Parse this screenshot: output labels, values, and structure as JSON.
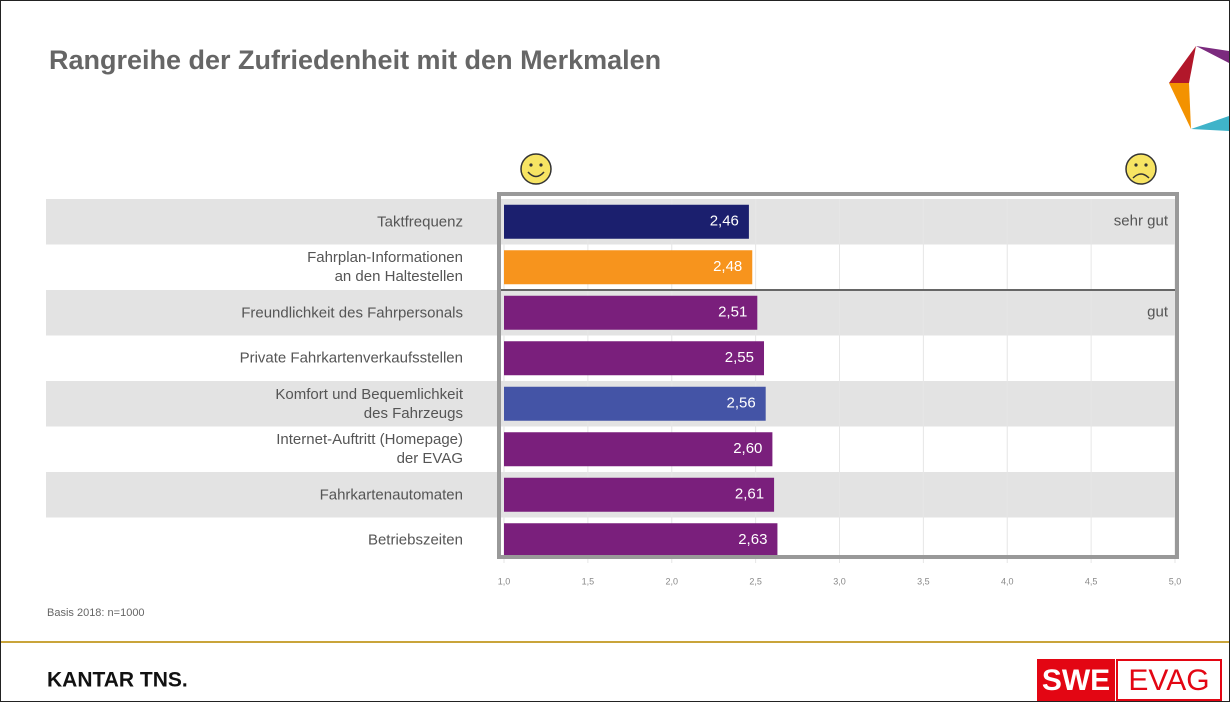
{
  "chart_data": {
    "type": "bar",
    "orientation": "horizontal",
    "title": "Rangreihe der Zufriedenheit mit den Merkmalen",
    "categories": [
      "Taktfrequenz",
      "Fahrplan-Informationen\nan den Haltestellen",
      "Freundlichkeit des Fahrpersonals",
      "Private Fahrkartenverkaufsstellen",
      "Komfort und Bequemlichkeit\ndes Fahrzeugs",
      "Internet-Auftritt (Homepage)\nder EVAG",
      "Fahrkartenautomaten",
      "Betriebszeiten"
    ],
    "values": [
      2.46,
      2.48,
      2.51,
      2.55,
      2.56,
      2.6,
      2.61,
      2.63
    ],
    "value_labels": [
      "2,46",
      "2,48",
      "2,51",
      "2,55",
      "2,56",
      "2,60",
      "2,61",
      "2,63"
    ],
    "colors": [
      "#1b1f6e",
      "#f7941d",
      "#7a1f7c",
      "#7a1f7c",
      "#4454a6",
      "#7a1f7c",
      "#7a1f7c",
      "#7a1f7c"
    ],
    "xlim": [
      1,
      5
    ],
    "xticks": [
      {
        "value": 1,
        "label": "1,0"
      },
      {
        "value": 1.5,
        "label": "1,5"
      },
      {
        "value": 2,
        "label": "2,0"
      },
      {
        "value": 2.5,
        "label": "2,5"
      },
      {
        "value": 3,
        "label": "3,0"
      },
      {
        "value": 3.5,
        "label": "3,5"
      },
      {
        "value": 4,
        "label": "4,0"
      },
      {
        "value": 4.5,
        "label": "4,5"
      },
      {
        "value": 5,
        "label": "5,0"
      }
    ],
    "grid": true,
    "annotations": [
      "sehr gut",
      "gut"
    ],
    "footnote": "Basis 2018: n=1000"
  },
  "footer": {
    "left_logo": "KANTAR TNS.",
    "right_logo": [
      "SWE",
      "EVAG"
    ]
  }
}
